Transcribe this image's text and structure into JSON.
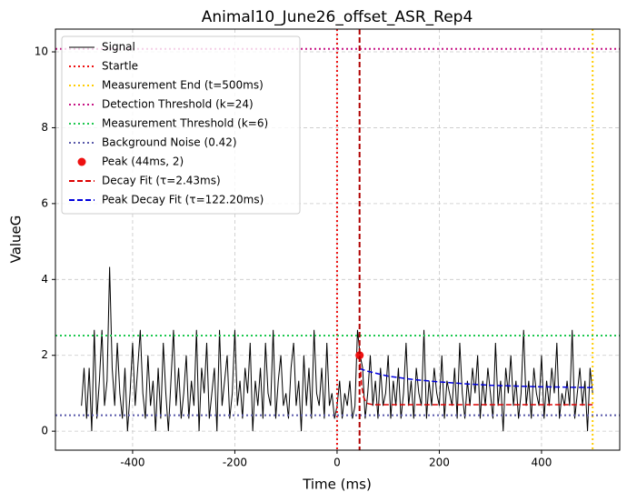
{
  "chart_data": {
    "type": "line",
    "title": "Animal10_June26_offset_ASR_Rep4",
    "xlabel": "Time (ms)",
    "ylabel": "ValueG",
    "xlim": [
      -551,
      553
    ],
    "ylim": [
      -0.5,
      10.6
    ],
    "xticks": [
      -400,
      -200,
      0,
      200,
      400
    ],
    "yticks": [
      0,
      2,
      4,
      6,
      8,
      10
    ],
    "grid": true,
    "legend": "upper left",
    "series": [
      {
        "type": "line",
        "name": "Signal",
        "color": "#000000",
        "style": "solid",
        "x": [
          -500,
          -495,
          -490,
          -485,
          -480,
          -475,
          -470,
          -465,
          -460,
          -455,
          -450,
          -445,
          -440,
          -435,
          -430,
          -425,
          -420,
          -415,
          -410,
          -405,
          -400,
          -395,
          -390,
          -385,
          -380,
          -375,
          -370,
          -365,
          -360,
          -355,
          -350,
          -345,
          -340,
          -335,
          -330,
          -325,
          -320,
          -315,
          -310,
          -305,
          -300,
          -295,
          -290,
          -285,
          -280,
          -275,
          -270,
          -265,
          -260,
          -255,
          -250,
          -245,
          -240,
          -235,
          -230,
          -225,
          -220,
          -215,
          -210,
          -205,
          -200,
          -195,
          -190,
          -185,
          -180,
          -175,
          -170,
          -165,
          -160,
          -155,
          -150,
          -145,
          -140,
          -135,
          -130,
          -125,
          -120,
          -115,
          -110,
          -105,
          -100,
          -95,
          -90,
          -85,
          -80,
          -75,
          -70,
          -65,
          -60,
          -55,
          -50,
          -45,
          -40,
          -35,
          -30,
          -25,
          -20,
          -15,
          -10,
          -5,
          0,
          5,
          10,
          15,
          20,
          25,
          30,
          35,
          40,
          45,
          50,
          55,
          60,
          65,
          70,
          75,
          80,
          85,
          90,
          95,
          100,
          105,
          110,
          115,
          120,
          125,
          130,
          135,
          140,
          145,
          150,
          155,
          160,
          165,
          170,
          175,
          180,
          185,
          190,
          195,
          200,
          205,
          210,
          215,
          220,
          225,
          230,
          235,
          240,
          245,
          250,
          255,
          260,
          265,
          270,
          275,
          280,
          285,
          290,
          295,
          300,
          305,
          310,
          315,
          320,
          325,
          330,
          335,
          340,
          345,
          350,
          355,
          360,
          365,
          370,
          375,
          380,
          385,
          390,
          395,
          400,
          405,
          410,
          415,
          420,
          425,
          430,
          435,
          440,
          445,
          450,
          455,
          460,
          465,
          470,
          475,
          480,
          485,
          490,
          495,
          500
        ],
        "values": [
          0.67,
          1.67,
          0.33,
          1.67,
          0,
          2.67,
          0.33,
          1.33,
          2.67,
          0.67,
          1.33,
          4.33,
          1.67,
          0.67,
          2.33,
          1,
          0.33,
          1.67,
          0,
          1,
          2.33,
          0.67,
          1.67,
          2.67,
          1,
          0.33,
          2,
          0.67,
          1.33,
          0,
          1.67,
          0.33,
          2.33,
          1,
          0,
          1.33,
          2.67,
          0.67,
          1.67,
          0.33,
          1,
          2,
          0.33,
          1.33,
          0.67,
          2.67,
          0,
          1.67,
          1,
          2.33,
          0.33,
          1,
          1.67,
          0,
          2.67,
          0.67,
          1.33,
          2,
          0.33,
          1,
          2.67,
          0.67,
          1.33,
          0.33,
          1.67,
          1,
          2.33,
          0,
          1.33,
          0.67,
          1.67,
          0.33,
          2.33,
          1,
          0.67,
          2.67,
          0.33,
          1.33,
          2,
          0.67,
          1,
          0.33,
          1.67,
          2.33,
          0.67,
          1.33,
          0,
          2,
          0.67,
          1.67,
          0.33,
          2.67,
          1,
          0.67,
          1.67,
          0.33,
          2.33,
          0.67,
          1,
          0.33,
          0.67,
          1.33,
          0.33,
          1,
          0.67,
          1.33,
          0.33,
          0.67,
          2.67,
          2,
          1.67,
          0.33,
          1,
          2,
          0.67,
          1.33,
          0.33,
          1.67,
          0.67,
          1,
          2,
          0.33,
          1.33,
          0.67,
          1.67,
          0.33,
          1,
          2.33,
          0.67,
          1.33,
          0.33,
          1.67,
          1,
          0.67,
          2.67,
          0.33,
          1.33,
          0.67,
          1.67,
          1,
          0.67,
          2,
          0.33,
          1.33,
          1,
          0.67,
          1.67,
          0.33,
          2.33,
          1,
          0.33,
          1.33,
          0.67,
          1.67,
          1,
          2,
          0.33,
          1.33,
          0.67,
          1.67,
          1,
          0.33,
          2.33,
          0.67,
          1.33,
          0,
          1.67,
          1,
          2,
          0.67,
          1.33,
          0.33,
          1,
          2.67,
          0.67,
          1.33,
          0.33,
          1.67,
          1,
          0.67,
          2,
          0.33,
          1.33,
          0.67,
          1.67,
          1,
          2.33,
          0.33,
          1,
          0.67,
          1.33,
          0.67,
          2.67,
          0.33,
          1,
          1.67,
          0.67,
          1.33,
          0,
          1.67,
          1
        ]
      },
      {
        "type": "vline",
        "name": "Startle",
        "color": "#ee1111",
        "style": "dotted",
        "x": 0
      },
      {
        "type": "vline",
        "name": "Measurement End (t=500ms)",
        "color": "#ffcc00",
        "style": "dotted",
        "x": 500
      },
      {
        "type": "hline",
        "name": "Detection Threshold (k=24)",
        "color": "#c71585",
        "style": "dotted",
        "y": 10.08
      },
      {
        "type": "hline",
        "name": "Measurement Threshold (k=6)",
        "color": "#1ec850",
        "style": "dotted",
        "y": 2.52
      },
      {
        "type": "hline",
        "name": "Background Noise (0.42)",
        "color": "#5a5aaa",
        "style": "dotted",
        "y": 0.42
      },
      {
        "type": "point",
        "name": "Peak (44ms, 2)",
        "color": "#ee1111",
        "x": 44,
        "y": 2
      },
      {
        "type": "line",
        "name": "Decay Fit (τ=2.43ms)",
        "color": "#dd0000",
        "style": "dashed",
        "x": [
          44,
          48,
          52,
          56,
          60,
          70,
          80,
          100,
          200,
          300,
          400,
          500
        ],
        "values": [
          2,
          1.2,
          0.9,
          0.78,
          0.73,
          0.7,
          0.7,
          0.7,
          0.7,
          0.7,
          0.7,
          0.7
        ]
      },
      {
        "type": "line",
        "name": "Peak Decay Fit (τ=122.20ms)",
        "color": "#0000dd",
        "style": "dashed",
        "x": [
          44,
          60,
          100,
          150,
          200,
          250,
          300,
          350,
          400,
          450,
          500
        ],
        "values": [
          1.65,
          1.58,
          1.45,
          1.36,
          1.3,
          1.25,
          1.21,
          1.19,
          1.17,
          1.16,
          1.15
        ]
      },
      {
        "type": "vline",
        "color": "#b00000",
        "style": "dashed",
        "x": 44
      }
    ]
  }
}
